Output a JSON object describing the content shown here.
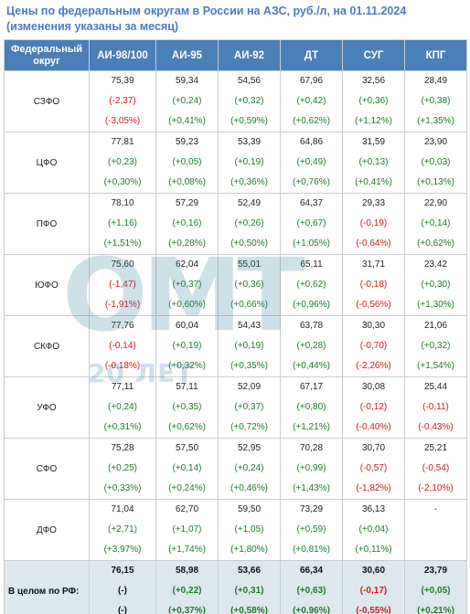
{
  "title": {
    "line1": "Цены по федеральным округам в России на АЗС, руб./л, на 01.11.2024",
    "line2": "(изменения указаны за месяц)"
  },
  "columns": [
    "Федеральный округ",
    "АИ-98/100",
    "АИ-95",
    "АИ-92",
    "ДТ",
    "СУГ",
    "КПГ"
  ],
  "rows": [
    {
      "region": "СЗФО",
      "cells": [
        {
          "price": "75,39",
          "change": "(-2,37)",
          "pct": "(-3,05%)"
        },
        {
          "price": "59,34",
          "change": "(+0,24)",
          "pct": "(+0,41%)"
        },
        {
          "price": "54,56",
          "change": "(+0,32)",
          "pct": "(+0,59%)"
        },
        {
          "price": "67,96",
          "change": "(+0,42)",
          "pct": "(+0,62%)"
        },
        {
          "price": "32,56",
          "change": "(+0,36)",
          "pct": "(+1,12%)"
        },
        {
          "price": "28,49",
          "change": "(+0,38)",
          "pct": "(+1,35%)"
        }
      ]
    },
    {
      "region": "ЦФО",
      "cells": [
        {
          "price": "77,81",
          "change": "(+0,23)",
          "pct": "(+0,30%)"
        },
        {
          "price": "59,23",
          "change": "(+0,05)",
          "pct": "(+0,08%)"
        },
        {
          "price": "53,39",
          "change": "(+0,19)",
          "pct": "(+0,36%)"
        },
        {
          "price": "64,86",
          "change": "(+0,49)",
          "pct": "(+0,76%)"
        },
        {
          "price": "31,59",
          "change": "(+0,13)",
          "pct": "(+0,41%)"
        },
        {
          "price": "23,90",
          "change": "(+0,03)",
          "pct": "(+0,13%)"
        }
      ]
    },
    {
      "region": "ПФО",
      "cells": [
        {
          "price": "78,10",
          "change": "(+1,16)",
          "pct": "(+1,51%)"
        },
        {
          "price": "57,29",
          "change": "(+0,16)",
          "pct": "(+0,28%)"
        },
        {
          "price": "52,49",
          "change": "(+0,26)",
          "pct": "(+0,50%)"
        },
        {
          "price": "64,37",
          "change": "(+0,67)",
          "pct": "(+1,05%)"
        },
        {
          "price": "29,33",
          "change": "(-0,19)",
          "pct": "(-0,64%)"
        },
        {
          "price": "22,90",
          "change": "(+0,14)",
          "pct": "(+0,62%)"
        }
      ]
    },
    {
      "region": "ЮФО",
      "cells": [
        {
          "price": "75,60",
          "change": "(-1,47)",
          "pct": "(-1,91%)"
        },
        {
          "price": "62,04",
          "change": "(+0,37)",
          "pct": "(+0,60%)"
        },
        {
          "price": "55,01",
          "change": "(+0,36)",
          "pct": "(+0,66%)"
        },
        {
          "price": "65,11",
          "change": "(+0,62)",
          "pct": "(+0,96%)"
        },
        {
          "price": "31,71",
          "change": "(-0,18)",
          "pct": "(-0,56%)"
        },
        {
          "price": "23,42",
          "change": "(+0,30)",
          "pct": "(+1,30%)"
        }
      ]
    },
    {
      "region": "СКФО",
      "cells": [
        {
          "price": "77,76",
          "change": "(-0,14)",
          "pct": "(-0,18%)"
        },
        {
          "price": "60,04",
          "change": "(+0,19)",
          "pct": "(+0,32%)"
        },
        {
          "price": "54,43",
          "change": "(+0,19)",
          "pct": "(+0,35%)"
        },
        {
          "price": "63,78",
          "change": "(+0,28)",
          "pct": "(+0,44%)"
        },
        {
          "price": "30,30",
          "change": "(-0,70)",
          "pct": "(-2,26%)"
        },
        {
          "price": "21,06",
          "change": "(+0,32)",
          "pct": "(+1,54%)"
        }
      ]
    },
    {
      "region": "УФО",
      "cells": [
        {
          "price": "77,11",
          "change": "(+0,24)",
          "pct": "(+0,31%)"
        },
        {
          "price": "57,11",
          "change": "(+0,35)",
          "pct": "(+0,62%)"
        },
        {
          "price": "52,09",
          "change": "(+0,37)",
          "pct": "(+0,72%)"
        },
        {
          "price": "67,17",
          "change": "(+0,80)",
          "pct": "(+1,21%)"
        },
        {
          "price": "30,08",
          "change": "(-0,12)",
          "pct": "(-0,40%)"
        },
        {
          "price": "25,44",
          "change": "(-0,11)",
          "pct": "(-0,43%)"
        }
      ]
    },
    {
      "region": "СФО",
      "cells": [
        {
          "price": "75,28",
          "change": "(+0,25)",
          "pct": "(+0,33%)"
        },
        {
          "price": "57,50",
          "change": "(+0,14)",
          "pct": "(+0,24%)"
        },
        {
          "price": "52,95",
          "change": "(+0,24)",
          "pct": "(+0,46%)"
        },
        {
          "price": "70,28",
          "change": "(+0,99)",
          "pct": "(+1,43%)"
        },
        {
          "price": "30,70",
          "change": "(-0,57)",
          "pct": "(-1,82%)"
        },
        {
          "price": "25,21",
          "change": "(-0,54)",
          "pct": "(-2,10%)"
        }
      ]
    },
    {
      "region": "ДФО",
      "cells": [
        {
          "price": "71,04",
          "change": "(+2,71)",
          "pct": "(+3,97%)"
        },
        {
          "price": "62,70",
          "change": "(+1,07)",
          "pct": "(+1,74%)"
        },
        {
          "price": "59,50",
          "change": "(+1,05)",
          "pct": "(+1,80%)"
        },
        {
          "price": "73,29",
          "change": "(+0,59)",
          "pct": "(+0,81%)"
        },
        {
          "price": "36,13",
          "change": "(+0,04)",
          "pct": "(+0,11%)"
        },
        {
          "price": "-",
          "change": "",
          "pct": ""
        }
      ]
    }
  ],
  "total": {
    "label": "В целом по РФ:",
    "cells": [
      {
        "price": "76,15",
        "change": "(-)",
        "pct": "(-)"
      },
      {
        "price": "58,98",
        "change": "(+0,22)",
        "pct": "(+0,37%)"
      },
      {
        "price": "53,66",
        "change": "(+0,31)",
        "pct": "(+0,58%)"
      },
      {
        "price": "66,34",
        "change": "(+0,63)",
        "pct": "(+0,96%)"
      },
      {
        "price": "30,60",
        "change": "(-0,17)",
        "pct": "(-0,55%)"
      },
      {
        "price": "23,79",
        "change": "(+0,05)",
        "pct": "(+0,21%)"
      }
    ]
  },
  "watermark": {
    "letters": "ОМТ",
    "subtitle": "20 ЛЕТ"
  },
  "colors": {
    "title": "#4a79c8",
    "header_bg": "#4a7fb7",
    "positive": "#1f7a2a",
    "negative": "#d11a1a",
    "total_bg": "#dde8ec"
  }
}
